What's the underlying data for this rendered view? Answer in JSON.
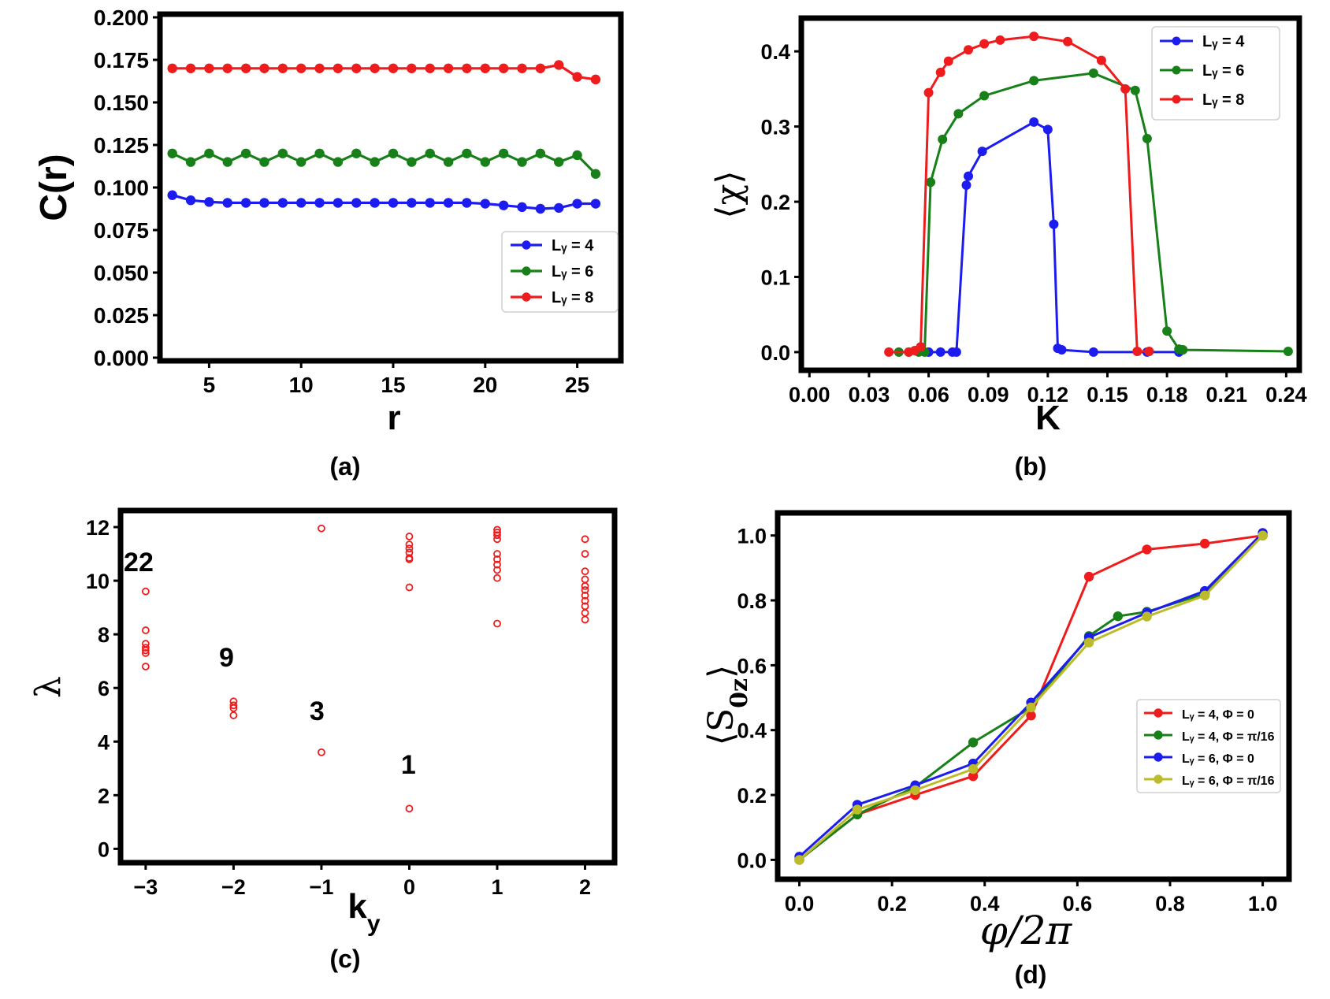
{
  "chart_data": [
    {
      "id": "a",
      "type": "line",
      "caption": "(a)",
      "xlabel": "r",
      "ylabel": "C(r)",
      "xlim": [
        2.5,
        27.2
      ],
      "ylim": [
        0.0,
        0.2
      ],
      "xticks": [
        5,
        10,
        15,
        20,
        25
      ],
      "xtick_labels": [
        "5",
        "10",
        "15",
        "20",
        "25"
      ],
      "yticks": [
        0.0,
        0.025,
        0.05,
        0.075,
        0.1,
        0.125,
        0.15,
        0.175,
        0.2
      ],
      "ytick_labels": [
        "0.000",
        "0.025",
        "0.050",
        "0.075",
        "0.100",
        "0.125",
        "0.150",
        "0.175",
        "0.200"
      ],
      "legend_position": "center-right",
      "series": [
        {
          "name": "L_y = 4",
          "color": "#1c1cf0",
          "x": [
            3,
            4,
            5,
            6,
            7,
            8,
            9,
            10,
            11,
            12,
            13,
            14,
            15,
            16,
            17,
            18,
            19,
            20,
            21,
            22,
            23,
            24,
            25,
            26
          ],
          "y": [
            0.0955,
            0.0925,
            0.0915,
            0.091,
            0.091,
            0.091,
            0.091,
            0.091,
            0.091,
            0.091,
            0.091,
            0.091,
            0.091,
            0.091,
            0.091,
            0.091,
            0.091,
            0.0905,
            0.0895,
            0.0885,
            0.0875,
            0.088,
            0.0905,
            0.0905
          ]
        },
        {
          "name": "L_y = 6",
          "color": "#188018",
          "x": [
            3,
            4,
            5,
            6,
            7,
            8,
            9,
            10,
            11,
            12,
            13,
            14,
            15,
            16,
            17,
            18,
            19,
            20,
            21,
            22,
            23,
            24,
            25,
            26
          ],
          "y": [
            0.12,
            0.115,
            0.12,
            0.115,
            0.12,
            0.115,
            0.12,
            0.115,
            0.12,
            0.115,
            0.12,
            0.115,
            0.12,
            0.115,
            0.12,
            0.115,
            0.12,
            0.115,
            0.12,
            0.115,
            0.12,
            0.115,
            0.119,
            0.108
          ]
        },
        {
          "name": "L_y = 8",
          "color": "#ee1c1c",
          "x": [
            3,
            4,
            5,
            6,
            7,
            8,
            9,
            10,
            11,
            12,
            13,
            14,
            15,
            16,
            17,
            18,
            19,
            20,
            21,
            22,
            23,
            24,
            25,
            26
          ],
          "y": [
            0.17,
            0.17,
            0.17,
            0.17,
            0.17,
            0.17,
            0.17,
            0.17,
            0.17,
            0.17,
            0.17,
            0.17,
            0.17,
            0.17,
            0.17,
            0.17,
            0.17,
            0.17,
            0.17,
            0.17,
            0.17,
            0.172,
            0.165,
            0.1635
          ]
        }
      ]
    },
    {
      "id": "b",
      "type": "line",
      "caption": "(b)",
      "xlabel": "K",
      "ylabel": "⟨χ⟩",
      "xlim": [
        -0.0025,
        0.245
      ],
      "ylim": [
        -0.02,
        0.44
      ],
      "xticks": [
        0,
        0.03,
        0.06,
        0.09,
        0.12,
        0.15,
        0.18,
        0.21,
        0.24
      ],
      "xtick_labels": [
        "0.00",
        "0.03",
        "0.06",
        "0.09",
        "0.12",
        "0.15",
        "0.18",
        "0.21",
        "0.24"
      ],
      "yticks": [
        0,
        0.1,
        0.2,
        0.3,
        0.4
      ],
      "ytick_labels": [
        "0.0",
        "0.1",
        "0.2",
        "0.3",
        "0.4"
      ],
      "legend_position": "top-right",
      "series": [
        {
          "name": "L_y = 4",
          "color": "#1c1cf0",
          "x": [
            0.06,
            0.066,
            0.072,
            0.074,
            0.079,
            0.08,
            0.087,
            0.113,
            0.12,
            0.123,
            0.125,
            0.127,
            0.143,
            0.17,
            0.186
          ],
          "y": [
            0.0,
            0.0,
            0.0,
            0.0,
            0.222,
            0.234,
            0.267,
            0.306,
            0.296,
            0.17,
            0.005,
            0.003,
            0.0,
            0.0,
            0.0
          ]
        },
        {
          "name": "L_y = 6",
          "color": "#188018",
          "x": [
            0.045,
            0.05,
            0.055,
            0.058,
            0.061,
            0.067,
            0.075,
            0.088,
            0.113,
            0.143,
            0.164,
            0.17,
            0.18,
            0.186,
            0.188,
            0.241
          ],
          "y": [
            0.0,
            0.0,
            0.0,
            0.0,
            0.226,
            0.283,
            0.317,
            0.341,
            0.361,
            0.371,
            0.348,
            0.284,
            0.028,
            0.004,
            0.003,
            0.001
          ]
        },
        {
          "name": "L_y = 8",
          "color": "#ee1c1c",
          "x": [
            0.04,
            0.05,
            0.053,
            0.056,
            0.06,
            0.066,
            0.07,
            0.08,
            0.088,
            0.096,
            0.113,
            0.13,
            0.147,
            0.159,
            0.165,
            0.171
          ],
          "y": [
            0.0,
            0.0,
            0.002,
            0.007,
            0.345,
            0.372,
            0.387,
            0.402,
            0.41,
            0.415,
            0.42,
            0.413,
            0.388,
            0.35,
            0.001,
            0.001
          ]
        }
      ]
    },
    {
      "id": "c",
      "type": "scatter",
      "caption": "(c)",
      "xlabel": "k_y",
      "ylabel": "λ",
      "xlim": [
        -3.25,
        2.3
      ],
      "ylim": [
        -0.4,
        12.5
      ],
      "xticks": [
        -3,
        -2,
        -1,
        0,
        1,
        2
      ],
      "xtick_labels": [
        "−3",
        "−2",
        "−1",
        "0",
        "1",
        "2"
      ],
      "yticks": [
        0,
        2,
        4,
        6,
        8,
        10,
        12
      ],
      "ytick_labels": [
        "0",
        "2",
        "4",
        "6",
        "8",
        "10",
        "12"
      ],
      "marker_color": "#ee1c1c",
      "points": [
        [
          -3,
          9.6
        ],
        [
          -3,
          8.15
        ],
        [
          -3,
          7.65
        ],
        [
          -3,
          7.5
        ],
        [
          -3,
          7.4
        ],
        [
          -3,
          7.3
        ],
        [
          -3,
          6.8
        ],
        [
          -2,
          5.5
        ],
        [
          -2,
          5.35
        ],
        [
          -2,
          5.25
        ],
        [
          -2,
          4.98
        ],
        [
          -1,
          11.95
        ],
        [
          -1,
          3.6
        ],
        [
          0,
          11.65
        ],
        [
          0,
          11.35
        ],
        [
          0,
          11.2
        ],
        [
          0,
          11.05
        ],
        [
          0,
          10.85
        ],
        [
          0,
          10.8
        ],
        [
          0,
          9.75
        ],
        [
          0,
          1.5
        ],
        [
          1,
          11.9
        ],
        [
          1,
          11.8
        ],
        [
          1,
          11.7
        ],
        [
          1,
          11.55
        ],
        [
          1,
          11.0
        ],
        [
          1,
          10.8
        ],
        [
          1,
          10.6
        ],
        [
          1,
          10.4
        ],
        [
          1,
          10.1
        ],
        [
          1,
          8.4
        ],
        [
          2,
          11.55
        ],
        [
          2,
          11.0
        ],
        [
          2,
          10.35
        ],
        [
          2,
          10.05
        ],
        [
          2,
          9.8
        ],
        [
          2,
          9.65
        ],
        [
          2,
          9.45
        ],
        [
          2,
          9.25
        ],
        [
          2,
          9.05
        ],
        [
          2,
          8.8
        ],
        [
          2,
          8.55
        ]
      ],
      "annotations": [
        {
          "text": "22",
          "x": -3.08,
          "y": 10.35
        },
        {
          "text": "9",
          "x": -2.08,
          "y": 6.8
        },
        {
          "text": "3",
          "x": -1.05,
          "y": 4.8
        },
        {
          "text": "1",
          "x": -0.01,
          "y": 2.8
        }
      ]
    },
    {
      "id": "d",
      "type": "line",
      "caption": "(d)",
      "xlabel": "φ/2π",
      "ylabel": "⟨S_0z⟩",
      "xlim": [
        -0.04,
        1.05
      ],
      "ylim": [
        -0.05,
        1.06
      ],
      "xticks": [
        0,
        0.2,
        0.4,
        0.6,
        0.8,
        1.0
      ],
      "xtick_labels": [
        "0.0",
        "0.2",
        "0.4",
        "0.6",
        "0.8",
        "1.0"
      ],
      "yticks": [
        0,
        0.2,
        0.4,
        0.6,
        0.8,
        1.0
      ],
      "ytick_labels": [
        "0.0",
        "0.2",
        "0.4",
        "0.6",
        "0.8",
        "1.0"
      ],
      "legend_position": "center-right",
      "series": [
        {
          "name": "L_y = 4, Φ = 0",
          "color": "#ee1c1c",
          "x": [
            0,
            0.125,
            0.25,
            0.375,
            0.5,
            0.625,
            0.75,
            0.875,
            1.0
          ],
          "y": [
            0.0,
            0.14,
            0.2,
            0.258,
            0.445,
            0.873,
            0.957,
            0.975,
            1.0
          ]
        },
        {
          "name": "L_y = 4, Φ = π/16",
          "color": "#188018",
          "x": [
            0,
            0.125,
            0.25,
            0.375,
            0.5,
            0.625,
            0.6875,
            0.75,
            0.875,
            1.0
          ],
          "y": [
            0.0,
            0.14,
            0.225,
            0.362,
            0.47,
            0.69,
            0.751,
            0.765,
            0.82,
            1.0
          ]
        },
        {
          "name": "L_y = 6, Φ = 0",
          "color": "#1c1cf0",
          "x": [
            0,
            0.125,
            0.25,
            0.375,
            0.5,
            0.625,
            0.75,
            0.875,
            1.0
          ],
          "y": [
            0.01,
            0.17,
            0.23,
            0.297,
            0.485,
            0.686,
            0.762,
            0.829,
            1.008
          ]
        },
        {
          "name": "L_y = 6, Φ = π/16",
          "color": "#bcbc2a",
          "x": [
            0,
            0.125,
            0.25,
            0.375,
            0.5,
            0.625,
            0.75,
            0.875,
            1.0
          ],
          "y": [
            0.0,
            0.155,
            0.215,
            0.28,
            0.47,
            0.67,
            0.75,
            0.815,
            1.0
          ]
        }
      ]
    }
  ]
}
